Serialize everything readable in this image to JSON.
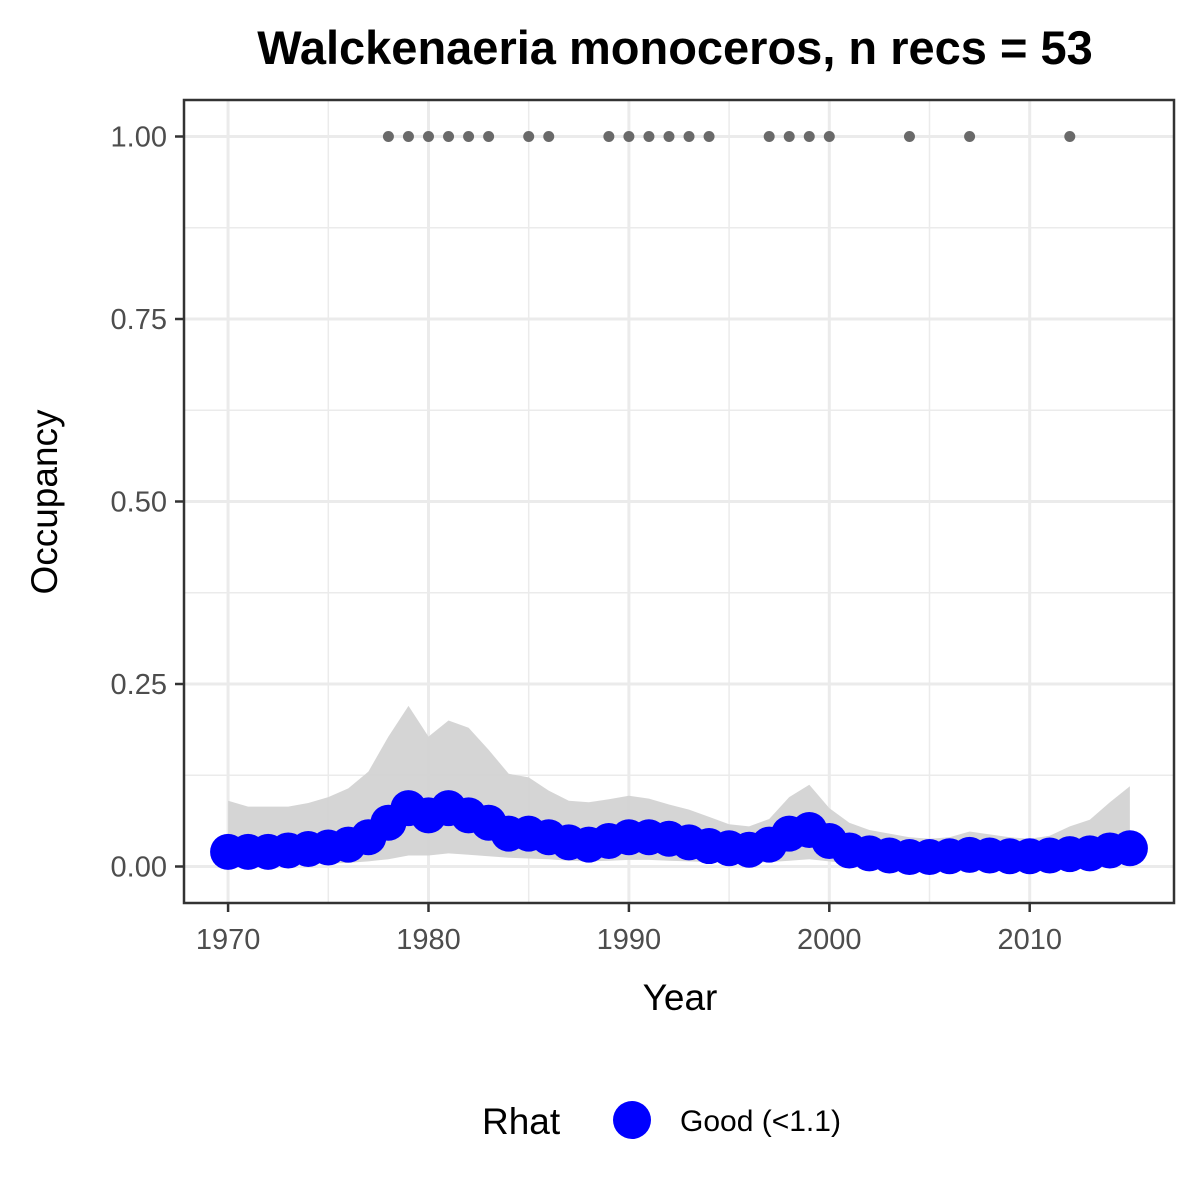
{
  "chart_data": {
    "type": "line",
    "title": "Walckenaeria monoceros, n recs = 53",
    "xlabel": "Year",
    "ylabel": "Occupancy",
    "xlim": [
      1967.8,
      2017.2
    ],
    "ylim": [
      -0.05,
      1.05
    ],
    "x_ticks": [
      1970,
      1980,
      1990,
      2000,
      2010
    ],
    "x_tick_labels": [
      "1970",
      "1980",
      "1990",
      "2000",
      "2010"
    ],
    "y_ticks": [
      0,
      0.25,
      0.5,
      0.75,
      1.0
    ],
    "y_tick_labels": [
      "0.00",
      "0.25",
      "0.50",
      "0.75",
      "1.00"
    ],
    "grid": true,
    "x": [
      1970,
      1971,
      1972,
      1973,
      1974,
      1975,
      1976,
      1977,
      1978,
      1979,
      1980,
      1981,
      1982,
      1983,
      1984,
      1985,
      1986,
      1987,
      1988,
      1989,
      1990,
      1991,
      1992,
      1993,
      1994,
      1995,
      1996,
      1997,
      1998,
      1999,
      2000,
      2001,
      2002,
      2003,
      2004,
      2005,
      2006,
      2007,
      2008,
      2009,
      2010,
      2011,
      2012,
      2013,
      2014,
      2015
    ],
    "occupancy": [
      0.02,
      0.02,
      0.02,
      0.022,
      0.024,
      0.026,
      0.03,
      0.04,
      0.06,
      0.08,
      0.07,
      0.08,
      0.07,
      0.06,
      0.045,
      0.045,
      0.04,
      0.033,
      0.03,
      0.035,
      0.04,
      0.04,
      0.038,
      0.033,
      0.028,
      0.025,
      0.023,
      0.03,
      0.045,
      0.05,
      0.035,
      0.022,
      0.018,
      0.015,
      0.013,
      0.013,
      0.014,
      0.016,
      0.015,
      0.014,
      0.014,
      0.015,
      0.017,
      0.018,
      0.022,
      0.025
    ],
    "lower": [
      0.002,
      0.002,
      0.002,
      0.003,
      0.003,
      0.004,
      0.005,
      0.007,
      0.01,
      0.015,
      0.015,
      0.018,
      0.016,
      0.014,
      0.012,
      0.011,
      0.01,
      0.008,
      0.007,
      0.008,
      0.009,
      0.009,
      0.008,
      0.007,
      0.006,
      0.005,
      0.005,
      0.006,
      0.008,
      0.01,
      0.007,
      0.004,
      0.003,
      0.003,
      0.002,
      0.002,
      0.002,
      0.003,
      0.002,
      0.002,
      0.002,
      0.002,
      0.003,
      0.003,
      0.003,
      0.004
    ],
    "upper": [
      0.09,
      0.082,
      0.082,
      0.082,
      0.087,
      0.095,
      0.107,
      0.13,
      0.178,
      0.22,
      0.178,
      0.2,
      0.19,
      0.16,
      0.127,
      0.122,
      0.104,
      0.09,
      0.088,
      0.092,
      0.097,
      0.093,
      0.085,
      0.078,
      0.068,
      0.058,
      0.055,
      0.065,
      0.095,
      0.112,
      0.08,
      0.06,
      0.05,
      0.045,
      0.04,
      0.038,
      0.04,
      0.048,
      0.044,
      0.04,
      0.038,
      0.042,
      0.055,
      0.064,
      0.088,
      0.11
    ],
    "record_years": [
      1978,
      1979,
      1980,
      1981,
      1982,
      1983,
      1985,
      1986,
      1989,
      1990,
      1991,
      1992,
      1993,
      1994,
      1997,
      1998,
      1999,
      2000,
      2004,
      2007,
      2012
    ],
    "record_value": 1.0,
    "legend": {
      "title": "Rhat",
      "items": [
        {
          "label": "Good (<1.1)",
          "color": "#0000ff"
        }
      ],
      "placement": "bottom"
    },
    "colors": {
      "line": "#0000ff",
      "ribbon": "#d3d3d3",
      "records": "#696969",
      "grid": "#ebebeb",
      "panel_border": "#333333"
    }
  }
}
